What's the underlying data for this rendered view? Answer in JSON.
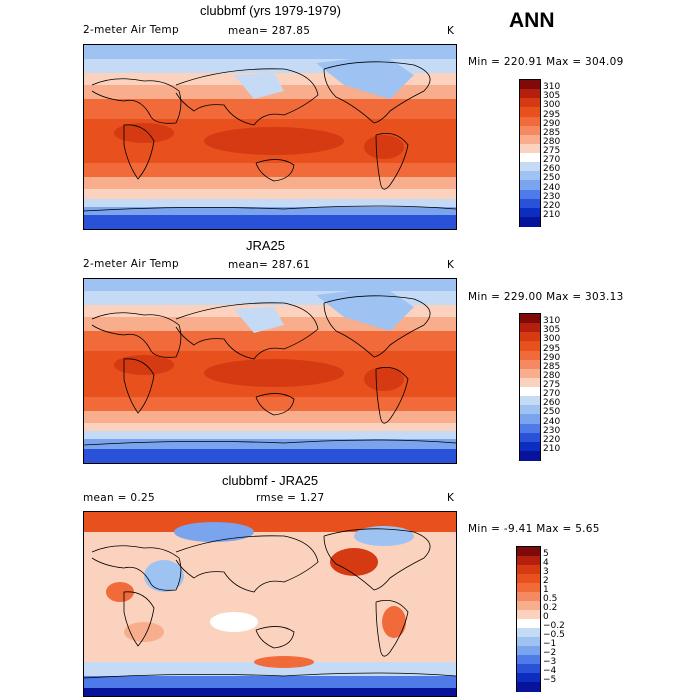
{
  "season": "ANN",
  "units": "K",
  "panels": [
    {
      "title": "clubbmf (yrs 1979-1979)",
      "variable": "2-meter Air Temp",
      "stat_text": "mean= 287.85",
      "minmax_text": "Min = 220.91  Max = 304.09"
    },
    {
      "title": "JRA25",
      "variable": "2-meter Air Temp",
      "stat_text": "mean= 287.61",
      "minmax_text": "Min = 229.00  Max = 303.13"
    },
    {
      "title": "clubbmf - JRA25",
      "mean_text": "mean =    0.25",
      "rmse_text": "rmse =    1.27",
      "minmax_text": "Min =  -9.41  Max =    5.65"
    }
  ],
  "chart_data": [
    {
      "type": "heatmap",
      "title": "clubbmf (yrs 1979-1979)",
      "subtitle": "2-meter Air Temp",
      "mean": 287.85,
      "min": 220.91,
      "max": 304.09,
      "units": "K",
      "colorbar_levels": [
        310,
        305,
        300,
        295,
        290,
        285,
        280,
        275,
        270,
        260,
        250,
        240,
        230,
        220,
        210
      ],
      "colorbar_colors": [
        "#7f0a0a",
        "#b41f0e",
        "#d53a12",
        "#e8501e",
        "#f06a3a",
        "#f58a62",
        "#f8ad8c",
        "#fbd2bd",
        "#ffffff",
        "#c5dbf5",
        "#9ec3f2",
        "#7aa4ee",
        "#4f7be8",
        "#2a52d8",
        "#0c2ec0",
        "#06139a"
      ]
    },
    {
      "type": "heatmap",
      "title": "JRA25",
      "subtitle": "2-meter Air Temp",
      "mean": 287.61,
      "min": 229.0,
      "max": 303.13,
      "units": "K",
      "colorbar_levels": [
        310,
        305,
        300,
        295,
        290,
        285,
        280,
        275,
        270,
        260,
        250,
        240,
        230,
        220,
        210
      ],
      "colorbar_colors": [
        "#7f0a0a",
        "#b41f0e",
        "#d53a12",
        "#e8501e",
        "#f06a3a",
        "#f58a62",
        "#f8ad8c",
        "#fbd2bd",
        "#ffffff",
        "#c5dbf5",
        "#9ec3f2",
        "#7aa4ee",
        "#4f7be8",
        "#2a52d8",
        "#0c2ec0",
        "#06139a"
      ]
    },
    {
      "type": "heatmap",
      "title": "clubbmf - JRA25",
      "mean": 0.25,
      "rmse": 1.27,
      "min": -9.41,
      "max": 5.65,
      "units": "K",
      "colorbar_levels": [
        "5",
        "4",
        "3",
        "2",
        "1",
        "0.5",
        "0.2",
        "0",
        "−0.2",
        "−0.5",
        "−1",
        "−2",
        "−3",
        "−4",
        "−5"
      ],
      "colorbar_colors": [
        "#7f0a0a",
        "#b41f0e",
        "#d53a12",
        "#e8501e",
        "#f06a3a",
        "#f58a62",
        "#f8ad8c",
        "#fbd2bd",
        "#ffffff",
        "#c5dbf5",
        "#9ec3f2",
        "#7aa4ee",
        "#4f7be8",
        "#2a52d8",
        "#0c2ec0",
        "#06139a"
      ]
    }
  ]
}
